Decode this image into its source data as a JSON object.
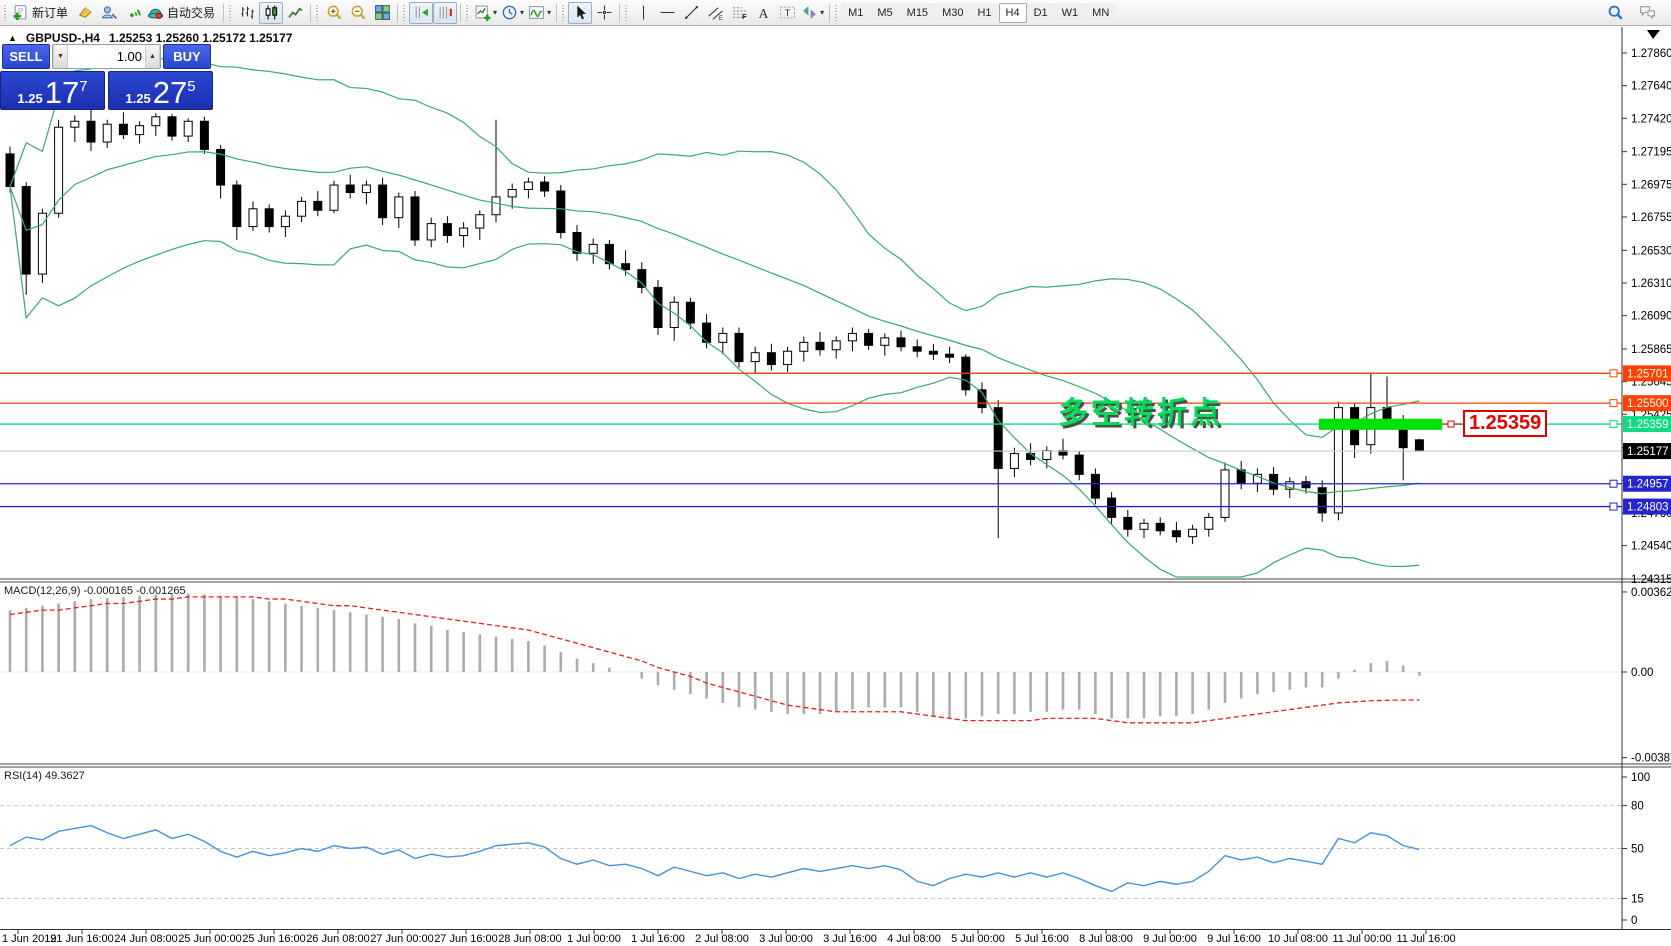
{
  "toolbar": {
    "dropdown_glyph": "▾",
    "buttons": [
      {
        "name": "new-order",
        "label": "新订单"
      },
      {
        "name": "metaeditor"
      },
      {
        "name": "market-watch"
      },
      {
        "name": "signals"
      },
      {
        "name": "auto-trading",
        "label": "自动交易"
      },
      {
        "sep": true
      },
      {
        "name": "bar-chart"
      },
      {
        "name": "candlestick-chart",
        "pressed": true
      },
      {
        "name": "line-chart"
      },
      {
        "sep": true
      },
      {
        "name": "zoom-in"
      },
      {
        "name": "zoom-out"
      },
      {
        "name": "tile-windows"
      },
      {
        "sep": true
      },
      {
        "name": "auto-scroll",
        "pressed": true
      },
      {
        "name": "chart-shift",
        "pressed": true
      },
      {
        "sep": true
      },
      {
        "name": "new-chart",
        "dropdown": true
      },
      {
        "name": "profiles",
        "dropdown": true
      },
      {
        "name": "indicators",
        "dropdown": true
      },
      {
        "sep": true
      },
      {
        "name": "cursor",
        "pressed": true
      },
      {
        "name": "crosshair"
      },
      {
        "sep": true
      },
      {
        "name": "vertical-line"
      },
      {
        "name": "horizontal-line"
      },
      {
        "name": "trendline"
      },
      {
        "name": "equidistant-channel"
      },
      {
        "name": "fibonacci"
      },
      {
        "name": "text"
      },
      {
        "name": "label"
      },
      {
        "name": "shapes",
        "dropdown": true
      },
      {
        "sep": true
      }
    ],
    "timeframes": [
      {
        "label": "M1"
      },
      {
        "label": "M5"
      },
      {
        "label": "M15"
      },
      {
        "label": "M30"
      },
      {
        "label": "H1"
      },
      {
        "label": "H4",
        "pressed": true
      },
      {
        "label": "D1"
      },
      {
        "label": "W1"
      },
      {
        "label": "MN"
      }
    ],
    "right_icons": [
      {
        "name": "search"
      },
      {
        "name": "chat"
      }
    ]
  },
  "title": {
    "tick": "▲",
    "symbol": "GBPUSD-,H4",
    "ohlc": "1.25253 1.25260 1.25172 1.25177"
  },
  "one_click": {
    "sell_label": "SELL",
    "buy_label": "BUY",
    "volume": "1.00",
    "spinner": {
      "down": "▼",
      "up": "▲"
    },
    "sell_price": {
      "base": "1.25",
      "big": "17",
      "sup": "7"
    },
    "buy_price": {
      "base": "1.25",
      "big": "27",
      "sup": "5"
    }
  },
  "panes": {
    "macd_label": "MACD(12,26,9) -0.000165 -0.001265",
    "rsi_label": "RSI(14) 49.3627"
  },
  "annotation": {
    "text": "多空转折点"
  },
  "price_tag": {
    "text": "1.25359"
  },
  "colors": {
    "background": "#ffffff",
    "bull": "#ffffff",
    "bear": "#000000",
    "outline": "#000000",
    "bollinger": "#3aa96c",
    "level_orange": "#ff4200",
    "level_green": "#0fdc82",
    "rect_green": "#00e204",
    "level_blue": "#2525cc",
    "current_price_line": "#c8c8c8",
    "current_label_bg": "#000000",
    "macd_histogram": "#ababab",
    "macd_signal": "#e02020",
    "rsi_line": "#4a90d9",
    "annotation_green": "#00dc55",
    "tag_red": "#e30000",
    "axis_text": "#000000"
  },
  "chart_data": {
    "type": "candlestick",
    "symbol_period": "GBPUSD-,H4",
    "candles": [
      [
        1.2718,
        1.2723,
        1.2692,
        1.2696
      ],
      [
        1.2696,
        1.2699,
        1.2623,
        1.2637
      ],
      [
        1.2637,
        1.2681,
        1.2631,
        1.2678
      ],
      [
        1.2678,
        1.2741,
        1.2675,
        1.2736
      ],
      [
        1.2736,
        1.2744,
        1.2726,
        1.274
      ],
      [
        1.274,
        1.2748,
        1.272,
        1.2726
      ],
      [
        1.2726,
        1.2741,
        1.2722,
        1.2738
      ],
      [
        1.2738,
        1.2746,
        1.2728,
        1.2731
      ],
      [
        1.2731,
        1.274,
        1.2725,
        1.2737
      ],
      [
        1.2737,
        1.27455,
        1.273,
        1.2743
      ],
      [
        1.2743,
        1.2745,
        1.2727,
        1.273
      ],
      [
        1.273,
        1.2742,
        1.2726,
        1.274
      ],
      [
        1.274,
        1.2743,
        1.2718,
        1.2721
      ],
      [
        1.2721,
        1.2724,
        1.2688,
        1.2697
      ],
      [
        1.2697,
        1.27,
        1.266,
        1.2669
      ],
      [
        1.2669,
        1.2686,
        1.2666,
        1.2681
      ],
      [
        1.2681,
        1.2684,
        1.2665,
        1.2669
      ],
      [
        1.2669,
        1.268,
        1.2662,
        1.2676
      ],
      [
        1.2676,
        1.2689,
        1.2672,
        1.2686
      ],
      [
        1.2686,
        1.2693,
        1.2676,
        1.268
      ],
      [
        1.268,
        1.27,
        1.2678,
        1.2697
      ],
      [
        1.2697,
        1.2704,
        1.2688,
        1.2692
      ],
      [
        1.2692,
        1.27,
        1.2684,
        1.2697
      ],
      [
        1.2697,
        1.2702,
        1.267,
        1.2675
      ],
      [
        1.2675,
        1.2692,
        1.2668,
        1.2689
      ],
      [
        1.2689,
        1.2693,
        1.2656,
        1.266
      ],
      [
        1.266,
        1.2675,
        1.2655,
        1.2671
      ],
      [
        1.2671,
        1.2676,
        1.2658,
        1.2663
      ],
      [
        1.2663,
        1.2672,
        1.2655,
        1.2668
      ],
      [
        1.2668,
        1.268,
        1.266,
        1.2677
      ],
      [
        1.2677,
        1.2741,
        1.2672,
        1.2689
      ],
      [
        1.2689,
        1.2698,
        1.2681,
        1.2694
      ],
      [
        1.2694,
        1.2702,
        1.2688,
        1.2699
      ],
      [
        1.2699,
        1.2703,
        1.2689,
        1.2693
      ],
      [
        1.2693,
        1.2697,
        1.2661,
        1.2665
      ],
      [
        1.2665,
        1.267,
        1.2646,
        1.2651
      ],
      [
        1.2651,
        1.2661,
        1.2644,
        1.2657
      ],
      [
        1.2657,
        1.266,
        1.264,
        1.2644
      ],
      [
        1.2644,
        1.2653,
        1.2636,
        1.264
      ],
      [
        1.264,
        1.2645,
        1.2624,
        1.2628
      ],
      [
        1.2628,
        1.2633,
        1.2596,
        1.2601
      ],
      [
        1.2601,
        1.2622,
        1.2592,
        1.2618
      ],
      [
        1.2618,
        1.2621,
        1.26,
        1.2604
      ],
      [
        1.2604,
        1.261,
        1.2587,
        1.2591
      ],
      [
        1.2591,
        1.2601,
        1.2583,
        1.2597
      ],
      [
        1.2597,
        1.2601,
        1.2574,
        1.2578
      ],
      [
        1.2578,
        1.2588,
        1.257,
        1.2584
      ],
      [
        1.2584,
        1.259,
        1.2572,
        1.2576
      ],
      [
        1.2576,
        1.2588,
        1.2571,
        1.2585
      ],
      [
        1.2585,
        1.2595,
        1.2578,
        1.2591
      ],
      [
        1.2591,
        1.2598,
        1.2582,
        1.2586
      ],
      [
        1.2586,
        1.2595,
        1.258,
        1.2592
      ],
      [
        1.2592,
        1.2601,
        1.2585,
        1.2597
      ],
      [
        1.2597,
        1.26,
        1.2586,
        1.2589
      ],
      [
        1.2589,
        1.2597,
        1.2582,
        1.2594
      ],
      [
        1.2594,
        1.2599,
        1.2585,
        1.2588
      ],
      [
        1.2588,
        1.2593,
        1.2581,
        1.2585
      ],
      [
        1.2585,
        1.259,
        1.2579,
        1.2583
      ],
      [
        1.2583,
        1.2588,
        1.2577,
        1.2581
      ],
      [
        1.2581,
        1.2583,
        1.2555,
        1.2559
      ],
      [
        1.2559,
        1.2564,
        1.2543,
        1.2547
      ],
      [
        1.2547,
        1.2552,
        1.2459,
        1.2506
      ],
      [
        1.2506,
        1.252,
        1.25,
        1.2516
      ],
      [
        1.2516,
        1.2523,
        1.2508,
        1.2512
      ],
      [
        1.2512,
        1.2521,
        1.2506,
        1.2518
      ],
      [
        1.2518,
        1.2526,
        1.2512,
        1.2515
      ],
      [
        1.2515,
        1.2518,
        1.2498,
        1.2502
      ],
      [
        1.2502,
        1.2506,
        1.2482,
        1.2486
      ],
      [
        1.2486,
        1.249,
        1.2468,
        1.2473
      ],
      [
        1.2473,
        1.2478,
        1.246,
        1.2465
      ],
      [
        1.2465,
        1.2472,
        1.2459,
        1.2469
      ],
      [
        1.2469,
        1.2473,
        1.2461,
        1.2464
      ],
      [
        1.2464,
        1.247,
        1.2456,
        1.246
      ],
      [
        1.246,
        1.2468,
        1.2455,
        1.2465
      ],
      [
        1.2465,
        1.2476,
        1.246,
        1.2473
      ],
      [
        1.2473,
        1.251,
        1.247,
        1.2505
      ],
      [
        1.2505,
        1.2511,
        1.2492,
        1.2496
      ],
      [
        1.2496,
        1.2506,
        1.249,
        1.2502
      ],
      [
        1.2502,
        1.2507,
        1.2488,
        1.2492
      ],
      [
        1.2492,
        1.25,
        1.2486,
        1.2497
      ],
      [
        1.2497,
        1.2501,
        1.2489,
        1.2493
      ],
      [
        1.2493,
        1.2498,
        1.247,
        1.2476
      ],
      [
        1.2476,
        1.2551,
        1.2471,
        1.2547
      ],
      [
        1.2547,
        1.255,
        1.2513,
        1.2522
      ],
      [
        1.2522,
        1.257,
        1.2516,
        1.2547
      ],
      [
        1.2547,
        1.2568,
        1.2536,
        1.2539
      ],
      [
        1.2539,
        1.2542,
        1.2498,
        1.252
      ],
      [
        1.25253,
        1.2526,
        1.25172,
        1.25177
      ]
    ],
    "bollinger": {
      "period": 20,
      "deviation": 2
    },
    "levels": [
      {
        "text": "1.25701",
        "value": 1.25701,
        "color": "orange"
      },
      {
        "text": "1.25500",
        "value": 1.255,
        "color": "orange"
      },
      {
        "text": "1.25359",
        "value": 1.25359,
        "color": "green"
      },
      {
        "text": "1.24957",
        "value": 1.24957,
        "color": "blue"
      },
      {
        "text": "1.24803",
        "value": 1.24803,
        "color": "blue"
      }
    ],
    "current_price": {
      "text": "1.25177",
      "value": 1.25177
    },
    "highlight_rect": {
      "from_x_bar": 80.8,
      "to_x_bar": 88.4,
      "top_price": 1.25395,
      "bottom_price": 1.2532
    },
    "price_scale": [
      "1.27860",
      "1.27640",
      "1.27420",
      "1.27195",
      "1.26975",
      "1.26755",
      "1.26530",
      "1.26310",
      "1.26090",
      "1.25865",
      "1.25645",
      "1.25425",
      "1.25200",
      "1.24980",
      "1.24760",
      "1.24540",
      "1.24315"
    ],
    "time_scale": [
      "1 Jun 2019",
      "21 Jun 16:00",
      "24 Jun 08:00",
      "25 Jun 00:00",
      "25 Jun 16:00",
      "26 Jun 08:00",
      "27 Jun 00:00",
      "27 Jun 16:00",
      "28 Jun 08:00",
      "1 Jul 00:00",
      "1 Jul 16:00",
      "2 Jul 08:00",
      "3 Jul 00:00",
      "3 Jul 16:00",
      "4 Jul 08:00",
      "5 Jul 00:00",
      "5 Jul 16:00",
      "8 Jul 08:00",
      "9 Jul 00:00",
      "9 Jul 16:00",
      "10 Jul 08:00",
      "11 Jul 00:00",
      "11 Jul 16:00"
    ],
    "macd": {
      "scale": [
        {
          "text": "0.003622",
          "value": 0.003622
        },
        {
          "text": "0.00",
          "value": 0
        },
        {
          "text": "-0.003877",
          "value": -0.003877
        }
      ],
      "histogram": [
        0.0028,
        0.0029,
        0.003,
        0.0031,
        0.0032,
        0.0033,
        0.00335,
        0.0034,
        0.00345,
        0.0035,
        0.00352,
        0.00355,
        0.0035,
        0.00345,
        0.0034,
        0.0033,
        0.0032,
        0.0031,
        0.003,
        0.0029,
        0.0028,
        0.0027,
        0.0026,
        0.0025,
        0.0024,
        0.0022,
        0.0021,
        0.0019,
        0.0018,
        0.0017,
        0.0016,
        0.0015,
        0.0014,
        0.0012,
        0.0009,
        0.0006,
        0.0004,
        0.0002,
        0.0,
        -0.0003,
        -0.0006,
        -0.0008,
        -0.001,
        -0.0012,
        -0.0014,
        -0.0016,
        -0.0017,
        -0.0018,
        -0.0019,
        -0.0019,
        -0.0019,
        -0.0018,
        -0.0017,
        -0.0016,
        -0.0016,
        -0.0016,
        -0.0018,
        -0.002,
        -0.0021,
        -0.0021,
        -0.002,
        -0.0019,
        -0.0019,
        -0.0018,
        -0.0018,
        -0.0017,
        -0.0017,
        -0.0019,
        -0.0021,
        -0.0021,
        -0.0021,
        -0.002,
        -0.002,
        -0.0019,
        -0.0017,
        -0.0014,
        -0.0012,
        -0.001,
        -0.0009,
        -0.0008,
        -0.0007,
        -0.0007,
        -0.0003,
        0.0001,
        0.0004,
        0.0005,
        0.0003,
        -0.000165
      ],
      "signal": [
        0.0026,
        0.0027,
        0.0028,
        0.0028,
        0.0029,
        0.003,
        0.0031,
        0.0031,
        0.0032,
        0.0033,
        0.0033,
        0.0034,
        0.0034,
        0.0034,
        0.0034,
        0.0034,
        0.0033,
        0.0033,
        0.0032,
        0.0031,
        0.003,
        0.003,
        0.0029,
        0.0028,
        0.0027,
        0.0026,
        0.0025,
        0.0024,
        0.0023,
        0.0022,
        0.0021,
        0.002,
        0.0019,
        0.0017,
        0.0015,
        0.0013,
        0.0011,
        0.0009,
        0.0007,
        0.0005,
        0.0002,
        0.0,
        -0.0002,
        -0.0005,
        -0.0007,
        -0.0009,
        -0.0011,
        -0.0013,
        -0.0015,
        -0.0016,
        -0.0017,
        -0.0018,
        -0.0018,
        -0.0018,
        -0.0018,
        -0.0018,
        -0.0019,
        -0.002,
        -0.0021,
        -0.0022,
        -0.0022,
        -0.0022,
        -0.0022,
        -0.0022,
        -0.0021,
        -0.0021,
        -0.0021,
        -0.0021,
        -0.0022,
        -0.0023,
        -0.0023,
        -0.0023,
        -0.0023,
        -0.0023,
        -0.0022,
        -0.0021,
        -0.002,
        -0.0019,
        -0.0018,
        -0.0017,
        -0.0016,
        -0.0015,
        -0.0014,
        -0.00135,
        -0.0013,
        -0.00128,
        -0.00127,
        -0.001265
      ]
    },
    "rsi": {
      "scale": [
        {
          "text": "100",
          "value": 100
        },
        {
          "text": "80",
          "value": 80
        },
        {
          "text": "50",
          "value": 50
        },
        {
          "text": "15",
          "value": 15
        },
        {
          "text": "0",
          "value": 0
        }
      ],
      "dashed_levels": [
        80,
        50,
        15
      ],
      "values": [
        52,
        58,
        56,
        62,
        64,
        66,
        61,
        57,
        60,
        63,
        57,
        60,
        55,
        48,
        44,
        48,
        45,
        47,
        50,
        48,
        52,
        50,
        51,
        46,
        49,
        43,
        46,
        44,
        45,
        48,
        52,
        53,
        54,
        51,
        43,
        39,
        42,
        38,
        39,
        36,
        31,
        37,
        34,
        31,
        33,
        29,
        32,
        30,
        33,
        36,
        34,
        36,
        38,
        36,
        38,
        35,
        27,
        24,
        29,
        32,
        30,
        33,
        30,
        33,
        30,
        33,
        29,
        24,
        20,
        26,
        24,
        27,
        25,
        27,
        34,
        45,
        42,
        44,
        40,
        43,
        41,
        39,
        57,
        54,
        61,
        59,
        52,
        49.36
      ]
    }
  }
}
